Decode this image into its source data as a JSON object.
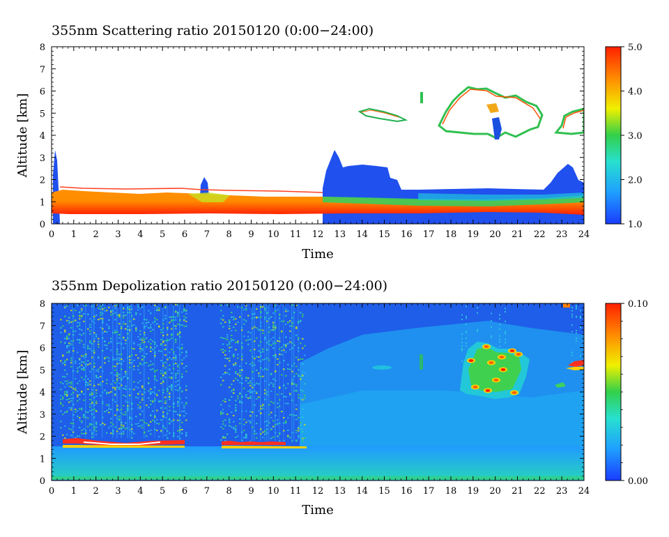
{
  "chart_data": [
    {
      "type": "heatmap",
      "title": "355nm Scattering ratio  20150120 (0:00−24:00)",
      "xlabel": "Time",
      "ylabel": "Altitude [km]",
      "xlim": [
        0,
        24
      ],
      "ylim": [
        0,
        8
      ],
      "xticks": [
        "0",
        "1",
        "2",
        "3",
        "4",
        "5",
        "6",
        "7",
        "8",
        "9",
        "10",
        "11",
        "12",
        "13",
        "14",
        "15",
        "16",
        "17",
        "18",
        "19",
        "20",
        "21",
        "22",
        "23",
        "24"
      ],
      "yticks": [
        "0",
        "1",
        "2",
        "3",
        "4",
        "5",
        "6",
        "7",
        "8"
      ],
      "colorbar": {
        "range": [
          1.0,
          5.0
        ],
        "tick_labels": [
          "1.0",
          "2.0",
          "3.0",
          "4.0",
          "5.0"
        ],
        "colors": [
          "#1a3cff",
          "#1fa0ff",
          "#27e0d0",
          "#32d04a",
          "#f0f000",
          "#ff8c00",
          "#ff2000"
        ]
      },
      "features": [
        {
          "name": "boundary layer",
          "x_range": [
            0,
            24
          ],
          "alt_km": [
            0.5,
            1.7
          ],
          "value": 4.5
        },
        {
          "name": "aerosol top",
          "x_range": [
            12.2,
            24
          ],
          "alt_km": [
            1.3,
            2.6
          ],
          "value": 1.2
        },
        {
          "name": "cloud",
          "x_range": [
            14.8,
            15.8
          ],
          "alt_km": [
            4.8,
            5.1
          ],
          "value": 3.0
        },
        {
          "name": "cloud",
          "x_range": [
            18.0,
            21.2
          ],
          "alt_km": [
            4.2,
            6.2
          ],
          "value": 3.0
        },
        {
          "name": "cloud",
          "x_range": [
            22.8,
            24
          ],
          "alt_km": [
            4.0,
            5.2
          ],
          "value": 3.0
        }
      ]
    },
    {
      "type": "heatmap",
      "title": "355nm Depolization ratio  20150120 (0:00−24:00)",
      "xlabel": "Time",
      "ylabel": "Altitude [km]",
      "xlim": [
        0,
        24
      ],
      "ylim": [
        0,
        8
      ],
      "xticks": [
        "0",
        "1",
        "2",
        "3",
        "4",
        "5",
        "6",
        "7",
        "8",
        "9",
        "10",
        "11",
        "12",
        "13",
        "14",
        "15",
        "16",
        "17",
        "18",
        "19",
        "20",
        "21",
        "22",
        "23",
        "24"
      ],
      "yticks": [
        "0",
        "1",
        "2",
        "3",
        "4",
        "5",
        "6",
        "7",
        "8"
      ],
      "colorbar": {
        "range": [
          0.0,
          0.1
        ],
        "tick_labels": [
          "0.00",
          "0.10"
        ],
        "colors": [
          "#1a3cff",
          "#1fa0ff",
          "#27e0d0",
          "#32d04a",
          "#f0f000",
          "#ff8c00",
          "#ff2000"
        ]
      },
      "features": [
        {
          "name": "boundary layer",
          "x_range": [
            0,
            24
          ],
          "alt_km": [
            0,
            1.5
          ],
          "value": 0.025
        },
        {
          "name": "noise band",
          "x_range": [
            0.5,
            6.0
          ],
          "alt_km": [
            1.8,
            8
          ],
          "value": 0.04
        },
        {
          "name": "noise band",
          "x_range": [
            7.7,
            11.3
          ],
          "alt_km": [
            1.6,
            8
          ],
          "value": 0.04
        },
        {
          "name": "cloud",
          "x_range": [
            18.5,
            21.3
          ],
          "alt_km": [
            3.7,
            6.2
          ],
          "value": 0.09
        },
        {
          "name": "cloud",
          "x_range": [
            23.0,
            24
          ],
          "alt_km": [
            4.8,
            5.3
          ],
          "value": 0.08
        }
      ]
    }
  ]
}
